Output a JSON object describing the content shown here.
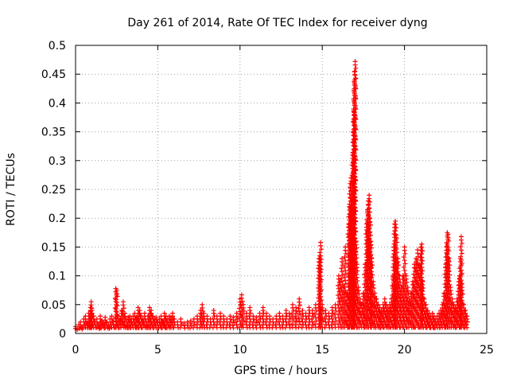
{
  "chart_data": {
    "type": "scatter",
    "title": "Day 261 of 2014, Rate Of TEC Index for receiver dyng",
    "xlabel": "GPS time / hours",
    "ylabel": "ROTI / TECUs",
    "xlim": [
      0,
      25
    ],
    "ylim": [
      0,
      0.5
    ],
    "grid": true,
    "x_ticks": [
      0,
      5,
      10,
      15,
      20,
      25
    ],
    "y_ticks": [
      0,
      0.05,
      0.1,
      0.15,
      0.2,
      0.25,
      0.3,
      0.35,
      0.4,
      0.45,
      0.5
    ],
    "x_tick_labels": [
      "0",
      "5",
      "10",
      "15",
      "20",
      "25"
    ],
    "y_tick_labels": [
      "0",
      "0.05",
      "0.1",
      "0.15",
      "0.2",
      "0.25",
      "0.3",
      "0.35",
      "0.4",
      "0.45",
      "0.5"
    ],
    "marker": "+",
    "marker_color": "#ff0000",
    "series": [
      {
        "name": "ROTI",
        "points": [
          [
            0.0,
            0.012
          ],
          [
            0.1,
            0.008
          ],
          [
            0.2,
            0.015
          ],
          [
            0.3,
            0.02
          ],
          [
            0.4,
            0.01
          ],
          [
            0.5,
            0.025
          ],
          [
            0.6,
            0.03
          ],
          [
            0.7,
            0.018
          ],
          [
            0.8,
            0.035
          ],
          [
            0.9,
            0.045
          ],
          [
            0.95,
            0.055
          ],
          [
            1.0,
            0.04
          ],
          [
            1.1,
            0.03
          ],
          [
            1.2,
            0.02
          ],
          [
            1.3,
            0.025
          ],
          [
            1.4,
            0.015
          ],
          [
            1.5,
            0.03
          ],
          [
            1.6,
            0.022
          ],
          [
            1.7,
            0.018
          ],
          [
            1.8,
            0.028
          ],
          [
            1.9,
            0.02
          ],
          [
            2.0,
            0.015
          ],
          [
            2.1,
            0.025
          ],
          [
            2.2,
            0.03
          ],
          [
            2.3,
            0.02
          ],
          [
            2.45,
            0.078
          ],
          [
            2.5,
            0.075
          ],
          [
            2.6,
            0.03
          ],
          [
            2.7,
            0.025
          ],
          [
            2.8,
            0.04
          ],
          [
            2.9,
            0.055
          ],
          [
            3.0,
            0.035
          ],
          [
            3.1,
            0.02
          ],
          [
            3.2,
            0.028
          ],
          [
            3.3,
            0.03
          ],
          [
            3.4,
            0.025
          ],
          [
            3.5,
            0.03
          ],
          [
            3.6,
            0.035
          ],
          [
            3.7,
            0.028
          ],
          [
            3.8,
            0.045
          ],
          [
            3.9,
            0.04
          ],
          [
            4.0,
            0.03
          ],
          [
            4.1,
            0.025
          ],
          [
            4.2,
            0.035
          ],
          [
            4.3,
            0.02
          ],
          [
            4.4,
            0.03
          ],
          [
            4.5,
            0.045
          ],
          [
            4.6,
            0.04
          ],
          [
            4.7,
            0.03
          ],
          [
            4.8,
            0.025
          ],
          [
            4.9,
            0.028
          ],
          [
            5.0,
            0.02
          ],
          [
            5.1,
            0.025
          ],
          [
            5.2,
            0.03
          ],
          [
            5.3,
            0.022
          ],
          [
            5.4,
            0.035
          ],
          [
            5.5,
            0.03
          ],
          [
            5.6,
            0.025
          ],
          [
            5.7,
            0.03
          ],
          [
            5.8,
            0.028
          ],
          [
            5.9,
            0.035
          ],
          [
            6.0,
            0.025
          ],
          [
            6.2,
            0.02
          ],
          [
            6.4,
            0.025
          ],
          [
            6.6,
            0.018
          ],
          [
            6.8,
            0.02
          ],
          [
            7.0,
            0.022
          ],
          [
            7.2,
            0.025
          ],
          [
            7.4,
            0.03
          ],
          [
            7.6,
            0.04
          ],
          [
            7.7,
            0.05
          ],
          [
            7.8,
            0.035
          ],
          [
            8.0,
            0.03
          ],
          [
            8.2,
            0.025
          ],
          [
            8.4,
            0.04
          ],
          [
            8.6,
            0.03
          ],
          [
            8.8,
            0.035
          ],
          [
            9.0,
            0.03
          ],
          [
            9.2,
            0.025
          ],
          [
            9.4,
            0.03
          ],
          [
            9.6,
            0.028
          ],
          [
            9.8,
            0.035
          ],
          [
            10.0,
            0.06
          ],
          [
            10.1,
            0.067
          ],
          [
            10.2,
            0.05
          ],
          [
            10.4,
            0.035
          ],
          [
            10.6,
            0.045
          ],
          [
            10.8,
            0.03
          ],
          [
            11.0,
            0.028
          ],
          [
            11.2,
            0.035
          ],
          [
            11.4,
            0.045
          ],
          [
            11.6,
            0.035
          ],
          [
            11.8,
            0.03
          ],
          [
            12.0,
            0.025
          ],
          [
            12.2,
            0.03
          ],
          [
            12.4,
            0.035
          ],
          [
            12.6,
            0.03
          ],
          [
            12.8,
            0.04
          ],
          [
            13.0,
            0.035
          ],
          [
            13.2,
            0.05
          ],
          [
            13.4,
            0.045
          ],
          [
            13.6,
            0.06
          ],
          [
            13.8,
            0.04
          ],
          [
            14.0,
            0.035
          ],
          [
            14.2,
            0.045
          ],
          [
            14.4,
            0.04
          ],
          [
            14.6,
            0.05
          ],
          [
            14.8,
            0.13
          ],
          [
            14.85,
            0.135
          ],
          [
            14.9,
            0.158
          ],
          [
            15.0,
            0.05
          ],
          [
            15.2,
            0.04
          ],
          [
            15.4,
            0.035
          ],
          [
            15.6,
            0.045
          ],
          [
            15.8,
            0.05
          ],
          [
            16.0,
            0.1
          ],
          [
            16.1,
            0.09
          ],
          [
            16.2,
            0.13
          ],
          [
            16.3,
            0.08
          ],
          [
            16.4,
            0.15
          ],
          [
            16.5,
            0.07
          ],
          [
            16.6,
            0.19
          ],
          [
            16.65,
            0.22
          ],
          [
            16.7,
            0.26
          ],
          [
            16.75,
            0.27
          ],
          [
            16.8,
            0.24
          ],
          [
            16.85,
            0.31
          ],
          [
            16.9,
            0.35
          ],
          [
            16.92,
            0.385
          ],
          [
            16.95,
            0.425
          ],
          [
            16.97,
            0.44
          ],
          [
            16.98,
            0.455
          ],
          [
            17.0,
            0.472
          ],
          [
            17.05,
            0.16
          ],
          [
            17.1,
            0.12
          ],
          [
            17.2,
            0.08
          ],
          [
            17.3,
            0.06
          ],
          [
            17.4,
            0.05
          ],
          [
            17.5,
            0.07
          ],
          [
            17.6,
            0.12
          ],
          [
            17.7,
            0.19
          ],
          [
            17.75,
            0.215
          ],
          [
            17.8,
            0.23
          ],
          [
            17.85,
            0.24
          ],
          [
            17.9,
            0.2
          ],
          [
            17.95,
            0.16
          ],
          [
            18.0,
            0.13
          ],
          [
            18.1,
            0.09
          ],
          [
            18.2,
            0.07
          ],
          [
            18.3,
            0.06
          ],
          [
            18.4,
            0.05
          ],
          [
            18.5,
            0.045
          ],
          [
            18.6,
            0.04
          ],
          [
            18.7,
            0.05
          ],
          [
            18.8,
            0.06
          ],
          [
            18.9,
            0.05
          ],
          [
            19.0,
            0.045
          ],
          [
            19.1,
            0.05
          ],
          [
            19.2,
            0.06
          ],
          [
            19.3,
            0.1
          ],
          [
            19.35,
            0.15
          ],
          [
            19.4,
            0.19
          ],
          [
            19.45,
            0.195
          ],
          [
            19.5,
            0.17
          ],
          [
            19.6,
            0.13
          ],
          [
            19.7,
            0.1
          ],
          [
            19.8,
            0.08
          ],
          [
            19.9,
            0.1
          ],
          [
            20.0,
            0.15
          ],
          [
            20.1,
            0.1
          ],
          [
            20.2,
            0.08
          ],
          [
            20.3,
            0.06
          ],
          [
            20.4,
            0.07
          ],
          [
            20.5,
            0.09
          ],
          [
            20.6,
            0.12
          ],
          [
            20.7,
            0.13
          ],
          [
            20.8,
            0.145
          ],
          [
            20.9,
            0.12
          ],
          [
            21.0,
            0.15
          ],
          [
            21.05,
            0.155
          ],
          [
            21.1,
            0.09
          ],
          [
            21.2,
            0.06
          ],
          [
            21.3,
            0.05
          ],
          [
            21.4,
            0.04
          ],
          [
            21.5,
            0.035
          ],
          [
            21.6,
            0.03
          ],
          [
            21.7,
            0.035
          ],
          [
            21.8,
            0.03
          ],
          [
            21.9,
            0.025
          ],
          [
            22.0,
            0.03
          ],
          [
            22.1,
            0.035
          ],
          [
            22.2,
            0.04
          ],
          [
            22.3,
            0.05
          ],
          [
            22.4,
            0.07
          ],
          [
            22.5,
            0.12
          ],
          [
            22.55,
            0.15
          ],
          [
            22.6,
            0.175
          ],
          [
            22.65,
            0.172
          ],
          [
            22.7,
            0.13
          ],
          [
            22.8,
            0.08
          ],
          [
            22.9,
            0.06
          ],
          [
            23.0,
            0.05
          ],
          [
            23.1,
            0.045
          ],
          [
            23.2,
            0.06
          ],
          [
            23.3,
            0.09
          ],
          [
            23.35,
            0.1
          ],
          [
            23.4,
            0.13
          ],
          [
            23.45,
            0.168
          ],
          [
            23.5,
            0.08
          ],
          [
            23.6,
            0.05
          ],
          [
            23.7,
            0.04
          ],
          [
            23.8,
            0.03
          ]
        ]
      }
    ]
  }
}
